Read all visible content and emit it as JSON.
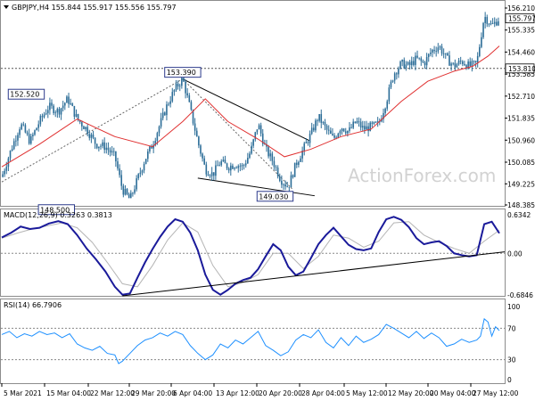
{
  "chart_data": [
    {
      "type": "candlestick",
      "title": "GBPJPY,H4",
      "ohlc": {
        "open": "155.844",
        "high": "155.917",
        "low": "155.556",
        "close": "155.797"
      },
      "ylim": [
        148.385,
        156.21
      ],
      "y_ticks": [
        "156.210",
        "155.335",
        "154.460",
        "153.585",
        "152.710",
        "151.835",
        "150.960",
        "150.085",
        "149.225",
        "148.385"
      ],
      "current_price": "155.797",
      "horizontal_level": "153.810",
      "annotations": [
        "152.520",
        "153.390",
        "148.500",
        "149.030"
      ],
      "moving_average": "red",
      "path": [
        [
          0,
          149.5
        ],
        [
          5,
          150.6
        ],
        [
          10,
          151.6
        ],
        [
          15,
          150.9
        ],
        [
          20,
          151.7
        ],
        [
          25,
          152.3
        ],
        [
          30,
          152.1
        ],
        [
          35,
          152.6
        ],
        [
          40,
          151.8
        ],
        [
          45,
          151.4
        ],
        [
          50,
          150.8
        ],
        [
          55,
          150.7
        ],
        [
          60,
          150.3
        ],
        [
          64,
          149.0
        ],
        [
          68,
          148.6
        ],
        [
          72,
          149.4
        ],
        [
          76,
          150.2
        ],
        [
          80,
          150.8
        ],
        [
          84,
          151.6
        ],
        [
          88,
          152.4
        ],
        [
          92,
          153.0
        ],
        [
          96,
          153.4
        ],
        [
          100,
          152.2
        ],
        [
          104,
          150.9
        ],
        [
          108,
          149.8
        ],
        [
          112,
          149.6
        ],
        [
          116,
          150.1
        ],
        [
          120,
          149.9
        ],
        [
          124,
          150.0
        ],
        [
          128,
          149.9
        ],
        [
          132,
          150.5
        ],
        [
          136,
          151.6
        ],
        [
          140,
          150.6
        ],
        [
          144,
          150.1
        ],
        [
          148,
          149.4
        ],
        [
          152,
          149.1
        ],
        [
          156,
          150.0
        ],
        [
          160,
          150.6
        ],
        [
          164,
          151.2
        ],
        [
          168,
          151.9
        ],
        [
          172,
          151.4
        ],
        [
          176,
          151.0
        ],
        [
          180,
          151.5
        ],
        [
          184,
          151.3
        ],
        [
          188,
          151.7
        ],
        [
          192,
          151.4
        ],
        [
          196,
          151.5
        ],
        [
          200,
          151.6
        ],
        [
          204,
          152.5
        ],
        [
          208,
          153.6
        ],
        [
          212,
          154.0
        ],
        [
          216,
          153.9
        ],
        [
          220,
          154.2
        ],
        [
          224,
          154.0
        ],
        [
          228,
          154.5
        ],
        [
          232,
          154.7
        ],
        [
          236,
          154.2
        ],
        [
          240,
          153.9
        ],
        [
          244,
          154.1
        ],
        [
          248,
          153.9
        ],
        [
          252,
          154.0
        ],
        [
          256,
          155.9
        ],
        [
          260,
          155.5
        ],
        [
          264,
          155.8
        ]
      ],
      "ma_path": [
        [
          0,
          149.9
        ],
        [
          20,
          150.8
        ],
        [
          40,
          151.8
        ],
        [
          60,
          151.1
        ],
        [
          80,
          150.7
        ],
        [
          96,
          151.7
        ],
        [
          108,
          152.6
        ],
        [
          120,
          151.7
        ],
        [
          136,
          151.0
        ],
        [
          150,
          150.3
        ],
        [
          164,
          150.6
        ],
        [
          180,
          151.1
        ],
        [
          196,
          151.4
        ],
        [
          212,
          152.5
        ],
        [
          226,
          153.3
        ],
        [
          240,
          153.7
        ],
        [
          250,
          153.9
        ],
        [
          258,
          154.3
        ],
        [
          264,
          154.7
        ]
      ]
    },
    {
      "type": "line",
      "title": "MACD(12,26,9) 0.3263 0.3813",
      "ylim": [
        -0.6846,
        0.6342
      ],
      "y_ticks": [
        "0.6342",
        "0.00",
        "-0.6846"
      ],
      "zero_label": "0.00",
      "series": [
        {
          "color": "#1a1a9a",
          "values": [
            [
              0,
              0.26
            ],
            [
              5,
              0.34
            ],
            [
              10,
              0.44
            ],
            [
              15,
              0.4
            ],
            [
              20,
              0.42
            ],
            [
              25,
              0.49
            ],
            [
              30,
              0.53
            ],
            [
              35,
              0.48
            ],
            [
              40,
              0.3
            ],
            [
              45,
              0.08
            ],
            [
              50,
              -0.1
            ],
            [
              55,
              -0.3
            ],
            [
              60,
              -0.55
            ],
            [
              64,
              -0.68
            ],
            [
              68,
              -0.66
            ],
            [
              72,
              -0.4
            ],
            [
              76,
              -0.15
            ],
            [
              80,
              0.07
            ],
            [
              84,
              0.27
            ],
            [
              88,
              0.44
            ],
            [
              92,
              0.56
            ],
            [
              96,
              0.52
            ],
            [
              100,
              0.34
            ],
            [
              104,
              0.05
            ],
            [
              108,
              -0.35
            ],
            [
              112,
              -0.6
            ],
            [
              116,
              -0.68
            ],
            [
              120,
              -0.6
            ],
            [
              124,
              -0.5
            ],
            [
              128,
              -0.44
            ],
            [
              132,
              -0.4
            ],
            [
              136,
              -0.26
            ],
            [
              140,
              -0.05
            ],
            [
              144,
              0.15
            ],
            [
              148,
              0.05
            ],
            [
              152,
              -0.22
            ],
            [
              156,
              -0.36
            ],
            [
              160,
              -0.3
            ],
            [
              164,
              -0.08
            ],
            [
              168,
              0.15
            ],
            [
              172,
              0.3
            ],
            [
              176,
              0.42
            ],
            [
              180,
              0.28
            ],
            [
              184,
              0.14
            ],
            [
              188,
              0.07
            ],
            [
              192,
              0.05
            ],
            [
              196,
              0.08
            ],
            [
              200,
              0.35
            ],
            [
              204,
              0.56
            ],
            [
              208,
              0.6
            ],
            [
              212,
              0.55
            ],
            [
              216,
              0.43
            ],
            [
              220,
              0.25
            ],
            [
              224,
              0.15
            ],
            [
              228,
              0.18
            ],
            [
              232,
              0.2
            ],
            [
              236,
              0.12
            ],
            [
              240,
              0.0
            ],
            [
              244,
              -0.03
            ],
            [
              248,
              -0.05
            ],
            [
              252,
              -0.03
            ],
            [
              256,
              0.48
            ],
            [
              260,
              0.52
            ],
            [
              264,
              0.33
            ]
          ]
        },
        {
          "color": "#b5b5b5",
          "values": [
            [
              0,
              0.25
            ],
            [
              8,
              0.33
            ],
            [
              16,
              0.4
            ],
            [
              24,
              0.45
            ],
            [
              32,
              0.5
            ],
            [
              40,
              0.42
            ],
            [
              48,
              0.18
            ],
            [
              56,
              -0.15
            ],
            [
              64,
              -0.5
            ],
            [
              72,
              -0.55
            ],
            [
              80,
              -0.2
            ],
            [
              88,
              0.22
            ],
            [
              96,
              0.5
            ],
            [
              104,
              0.35
            ],
            [
              112,
              -0.2
            ],
            [
              120,
              -0.55
            ],
            [
              128,
              -0.48
            ],
            [
              136,
              -0.35
            ],
            [
              144,
              0.0
            ],
            [
              152,
              0.0
            ],
            [
              160,
              -0.25
            ],
            [
              168,
              -0.05
            ],
            [
              176,
              0.3
            ],
            [
              184,
              0.25
            ],
            [
              192,
              0.1
            ],
            [
              200,
              0.2
            ],
            [
              208,
              0.5
            ],
            [
              216,
              0.52
            ],
            [
              224,
              0.3
            ],
            [
              232,
              0.18
            ],
            [
              240,
              0.08
            ],
            [
              248,
              0.0
            ],
            [
              256,
              0.2
            ],
            [
              264,
              0.38
            ]
          ]
        }
      ],
      "trend_line": [
        [
          64,
          -0.7
        ],
        [
          264,
          0.01
        ]
      ]
    },
    {
      "type": "line",
      "title": "RSI(14) 66.7906",
      "ylim": [
        0,
        100
      ],
      "y_ticks": [
        "100",
        "70",
        "30",
        "0"
      ],
      "levels": [
        70,
        30
      ],
      "series": [
        {
          "color": "#1e90ff",
          "values": [
            [
              0,
              62
            ],
            [
              4,
              66
            ],
            [
              8,
              58
            ],
            [
              12,
              63
            ],
            [
              16,
              60
            ],
            [
              20,
              66
            ],
            [
              24,
              62
            ],
            [
              28,
              64
            ],
            [
              32,
              58
            ],
            [
              36,
              63
            ],
            [
              40,
              50
            ],
            [
              44,
              45
            ],
            [
              48,
              42
            ],
            [
              52,
              47
            ],
            [
              56,
              38
            ],
            [
              60,
              36
            ],
            [
              62,
              25
            ],
            [
              64,
              28
            ],
            [
              68,
              38
            ],
            [
              72,
              48
            ],
            [
              76,
              55
            ],
            [
              80,
              58
            ],
            [
              84,
              64
            ],
            [
              88,
              60
            ],
            [
              92,
              66
            ],
            [
              96,
              62
            ],
            [
              100,
              48
            ],
            [
              104,
              38
            ],
            [
              108,
              30
            ],
            [
              112,
              36
            ],
            [
              116,
              50
            ],
            [
              120,
              45
            ],
            [
              124,
              55
            ],
            [
              128,
              50
            ],
            [
              132,
              58
            ],
            [
              136,
              66
            ],
            [
              140,
              48
            ],
            [
              144,
              42
            ],
            [
              148,
              35
            ],
            [
              152,
              40
            ],
            [
              156,
              55
            ],
            [
              160,
              62
            ],
            [
              164,
              58
            ],
            [
              168,
              68
            ],
            [
              172,
              52
            ],
            [
              176,
              45
            ],
            [
              180,
              58
            ],
            [
              184,
              48
            ],
            [
              188,
              60
            ],
            [
              192,
              52
            ],
            [
              196,
              56
            ],
            [
              200,
              62
            ],
            [
              204,
              75
            ],
            [
              208,
              70
            ],
            [
              212,
              64
            ],
            [
              216,
              58
            ],
            [
              220,
              66
            ],
            [
              224,
              57
            ],
            [
              228,
              64
            ],
            [
              232,
              58
            ],
            [
              236,
              47
            ],
            [
              240,
              50
            ],
            [
              244,
              56
            ],
            [
              248,
              52
            ],
            [
              252,
              55
            ],
            [
              254,
              60
            ],
            [
              256,
              82
            ],
            [
              258,
              78
            ],
            [
              260,
              60
            ],
            [
              262,
              72
            ],
            [
              264,
              67
            ]
          ]
        }
      ]
    }
  ],
  "x_ticks": [
    "5 Mar 2021",
    "15 Mar 04:00",
    "22 Mar 12:00",
    "29 Mar 20:00",
    "6 Apr 04:00",
    "13 Apr 12:00",
    "20 Apr 20:00",
    "28 Apr 04:00",
    "5 May 12:00",
    "12 May 20:00",
    "20 May 04:00",
    "27 May 12:00"
  ],
  "watermark": "ActionForex.com",
  "colors": {
    "candle": "#2d6e98",
    "ma": "#e03030",
    "macd": "#1a1a9a",
    "signal": "#b5b5b5",
    "rsi": "#1e90ff",
    "frame": "#8c8c8c",
    "annotation_border": "#2c3a8c",
    "watermark": "#d2d2d2"
  }
}
